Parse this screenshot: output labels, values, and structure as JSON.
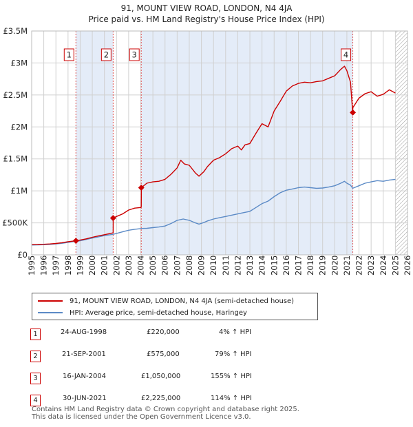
{
  "chart_data": {
    "type": "line",
    "title": "91, MOUNT VIEW ROAD, LONDON, N4 4JA",
    "subtitle": "Price paid vs. HM Land Registry's House Price Index (HPI)",
    "xlim": [
      1995,
      2026
    ],
    "ylim": [
      0,
      3500000
    ],
    "yticks": [
      0,
      500000,
      1000000,
      1500000,
      2000000,
      2500000,
      3000000,
      3500000
    ],
    "ytick_labels": [
      "£0",
      "£500K",
      "£1M",
      "£1.5M",
      "£2M",
      "£2.5M",
      "£3M",
      "£3.5M"
    ],
    "xticks": [
      1995,
      1996,
      1997,
      1998,
      1999,
      2000,
      2001,
      2002,
      2003,
      2004,
      2005,
      2006,
      2007,
      2008,
      2009,
      2010,
      2011,
      2012,
      2013,
      2014,
      2015,
      2016,
      2017,
      2018,
      2019,
      2020,
      2021,
      2022,
      2023,
      2024,
      2025,
      2026
    ],
    "xtick_labels": [
      "1995",
      "1996",
      "1997",
      "1998",
      "1999",
      "2000",
      "2001",
      "2002",
      "2003",
      "2004",
      "2005",
      "2006",
      "2007",
      "2008",
      "2009",
      "2010",
      "2011",
      "2012",
      "2013",
      "2014",
      "2015",
      "2016",
      "2017",
      "2018",
      "2019",
      "2020",
      "2021",
      "2022",
      "2023",
      "2024",
      "2025",
      "2026"
    ],
    "series": [
      {
        "name": "91, MOUNT VIEW ROAD, LONDON, N4 4JA (semi-detached house)",
        "color": "#cc0000",
        "x": [
          1995.0,
          1995.5,
          1996.0,
          1996.5,
          1997.0,
          1997.5,
          1998.0,
          1998.65,
          1999.0,
          1999.5,
          2000.0,
          2000.5,
          2001.0,
          2001.5,
          2001.72,
          2001.73,
          2002.0,
          2002.5,
          2003.0,
          2003.5,
          2004.0,
          2004.04,
          2004.05,
          2004.5,
          2005.0,
          2005.5,
          2006.0,
          2006.5,
          2007.0,
          2007.3,
          2007.6,
          2008.0,
          2008.5,
          2008.8,
          2009.2,
          2009.5,
          2010.0,
          2010.5,
          2011.0,
          2011.5,
          2012.0,
          2012.3,
          2012.6,
          2013.0,
          2013.5,
          2014.0,
          2014.5,
          2015.0,
          2015.5,
          2016.0,
          2016.5,
          2017.0,
          2017.5,
          2018.0,
          2018.5,
          2019.0,
          2019.5,
          2020.0,
          2020.5,
          2020.8,
          2021.0,
          2021.3,
          2021.48,
          2021.49,
          2022.0,
          2022.5,
          2023.0,
          2023.5,
          2024.0,
          2024.5,
          2025.0
        ],
        "values": [
          160000,
          162000,
          165000,
          170000,
          178000,
          190000,
          205000,
          220000,
          230000,
          250000,
          275000,
          295000,
          315000,
          335000,
          345000,
          575000,
          600000,
          640000,
          700000,
          730000,
          740000,
          750000,
          1050000,
          1120000,
          1140000,
          1150000,
          1180000,
          1260000,
          1360000,
          1480000,
          1420000,
          1400000,
          1280000,
          1230000,
          1300000,
          1380000,
          1480000,
          1520000,
          1580000,
          1660000,
          1700000,
          1640000,
          1720000,
          1740000,
          1900000,
          2050000,
          2000000,
          2250000,
          2400000,
          2560000,
          2640000,
          2680000,
          2700000,
          2690000,
          2710000,
          2720000,
          2760000,
          2800000,
          2900000,
          2950000,
          2880000,
          2700000,
          2225000,
          2300000,
          2450000,
          2520000,
          2550000,
          2480000,
          2510000,
          2580000,
          2530000
        ]
      },
      {
        "name": "HPI: Average price, semi-detached house, Haringey",
        "color": "#5b8ac6",
        "x": [
          1995.0,
          1995.5,
          1996.0,
          1996.5,
          1997.0,
          1997.5,
          1998.0,
          1998.65,
          1999.0,
          1999.5,
          2000.0,
          2000.5,
          2001.0,
          2001.5,
          2001.72,
          2002.0,
          2002.5,
          2003.0,
          2003.5,
          2004.0,
          2004.04,
          2004.5,
          2005.0,
          2005.5,
          2006.0,
          2006.5,
          2007.0,
          2007.5,
          2008.0,
          2008.5,
          2008.8,
          2009.2,
          2009.5,
          2010.0,
          2010.5,
          2011.0,
          2011.5,
          2012.0,
          2012.5,
          2013.0,
          2013.5,
          2014.0,
          2014.5,
          2015.0,
          2015.5,
          2016.0,
          2016.5,
          2017.0,
          2017.5,
          2018.0,
          2018.5,
          2019.0,
          2019.5,
          2020.0,
          2020.5,
          2020.8,
          2021.0,
          2021.3,
          2021.48,
          2022.0,
          2022.5,
          2023.0,
          2023.5,
          2024.0,
          2024.5,
          2025.0
        ],
        "values": [
          153000,
          155000,
          158000,
          163000,
          170000,
          180000,
          195000,
          211000,
          220000,
          240000,
          262000,
          280000,
          300000,
          315000,
          321000,
          335000,
          360000,
          385000,
          400000,
          410000,
          412000,
          415000,
          425000,
          435000,
          450000,
          490000,
          540000,
          560000,
          540000,
          500000,
          480000,
          505000,
          530000,
          560000,
          580000,
          600000,
          620000,
          640000,
          660000,
          680000,
          740000,
          800000,
          840000,
          910000,
          970000,
          1010000,
          1030000,
          1050000,
          1060000,
          1050000,
          1040000,
          1045000,
          1060000,
          1080000,
          1120000,
          1150000,
          1120000,
          1090000,
          1040000,
          1080000,
          1120000,
          1140000,
          1160000,
          1150000,
          1170000,
          1180000
        ]
      }
    ],
    "sales": [
      {
        "label": "1",
        "x": 1998.65,
        "value": 220000
      },
      {
        "label": "2",
        "x": 2001.72,
        "value": 575000
      },
      {
        "label": "3",
        "x": 2004.04,
        "value": 1050000
      },
      {
        "label": "4",
        "x": 2021.49,
        "value": 2225000
      }
    ],
    "future_hatch_from": 2025.0
  },
  "legend": {
    "property": "91, MOUNT VIEW ROAD, LONDON, N4 4JA (semi-detached house)",
    "hpi": "HPI: Average price, semi-detached house, Haringey"
  },
  "table": [
    {
      "num": "1",
      "date": "24-AUG-1998",
      "price": "£220,000",
      "hpi": "4% ↑ HPI"
    },
    {
      "num": "2",
      "date": "21-SEP-2001",
      "price": "£575,000",
      "hpi": "79% ↑ HPI"
    },
    {
      "num": "3",
      "date": "16-JAN-2004",
      "price": "£1,050,000",
      "hpi": "155% ↑ HPI"
    },
    {
      "num": "4",
      "date": "30-JUN-2021",
      "price": "£2,225,000",
      "hpi": "114% ↑ HPI"
    }
  ],
  "footer": {
    "line1": "Contains HM Land Registry data © Crown copyright and database right 2025.",
    "line2": "This data is licensed under the Open Government Licence v3.0."
  },
  "colors": {
    "property": "#cc0000",
    "hpi": "#5b8ac6",
    "shade": "#e4ecf8",
    "grid": "#d0d0d0"
  }
}
